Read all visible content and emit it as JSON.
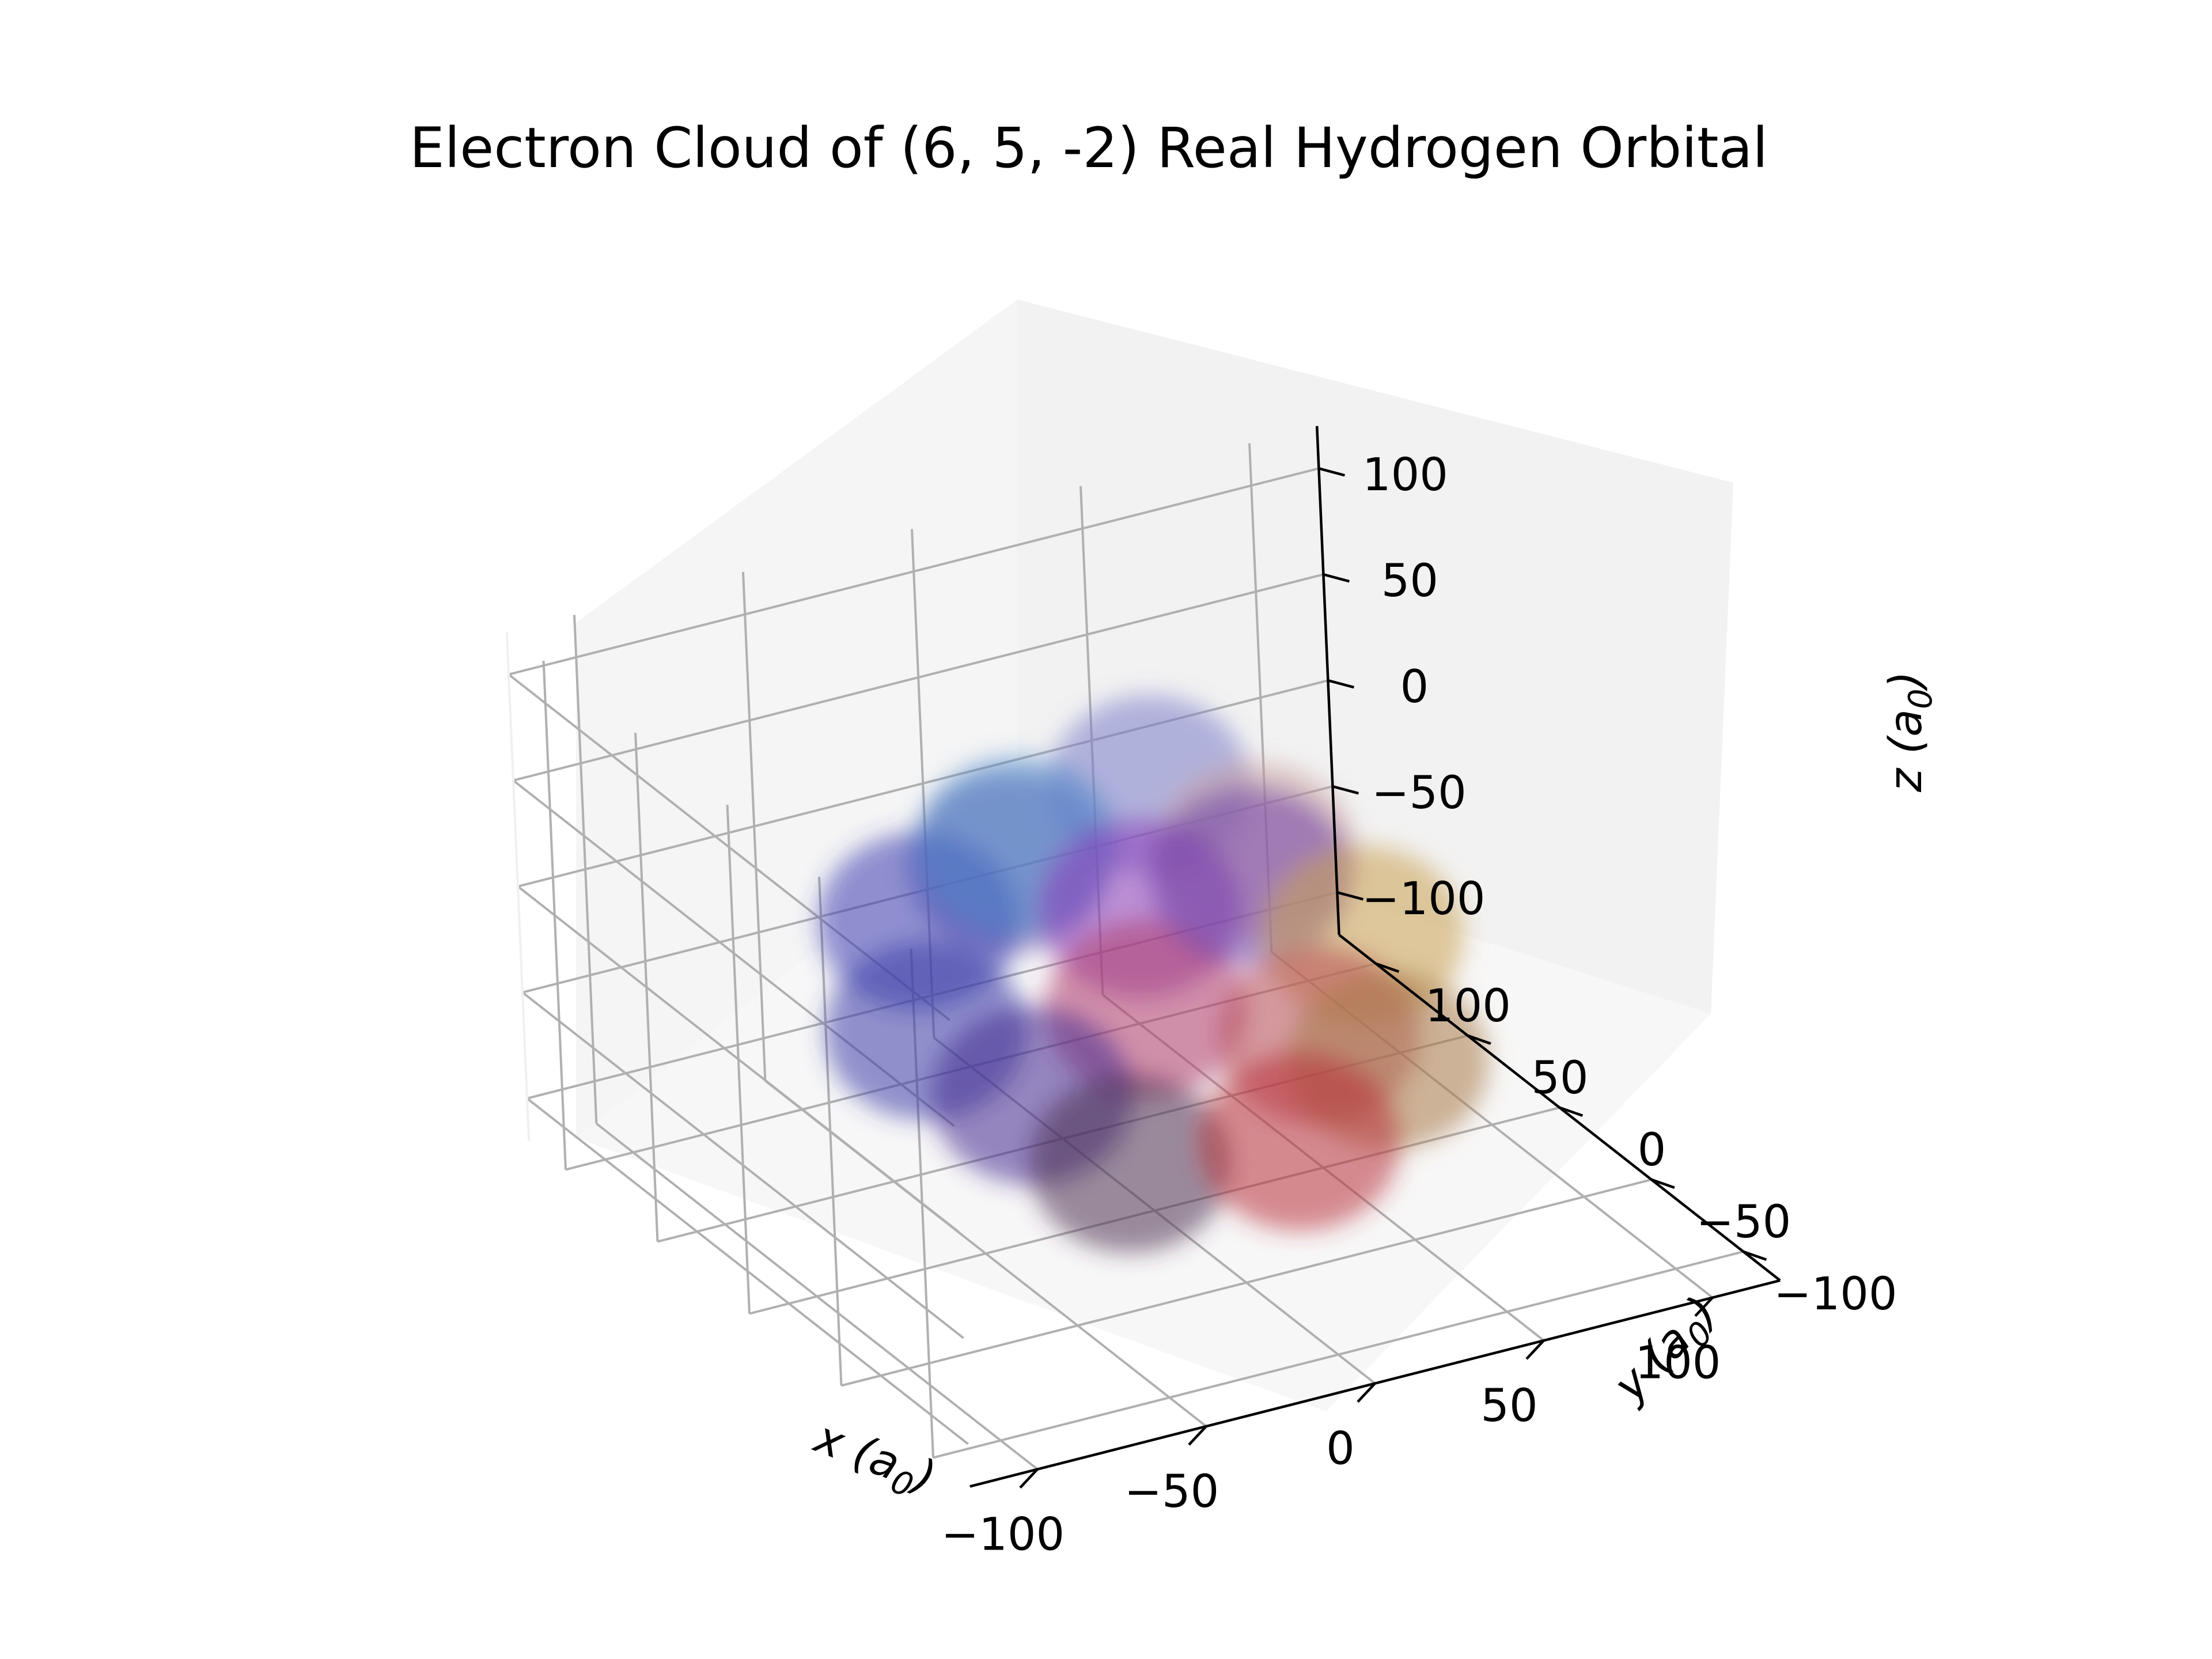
{
  "chart_data": {
    "type": "scatter",
    "title": "Electron Cloud of (6, 5, -2) Real Hydrogen Orbital",
    "xlabel": "x (a0)",
    "ylabel": "y (a0)",
    "zlabel": "z (a0)",
    "xlabel_parts": {
      "base": "x (",
      "var": "a",
      "sub": "0",
      "close": ")"
    },
    "ylabel_parts": {
      "base": "y (",
      "var": "a",
      "sub": "0",
      "close": ")"
    },
    "zlabel_parts": {
      "base": "z (",
      "var": "a",
      "sub": "0",
      "close": ")"
    },
    "xlim": [
      -120,
      120
    ],
    "ylim": [
      -120,
      120
    ],
    "zlim": [
      -120,
      120
    ],
    "x_ticks": [
      -100,
      -50,
      0,
      50,
      100
    ],
    "y_ticks": [
      -100,
      -50,
      0,
      50,
      100
    ],
    "z_ticks": [
      -100,
      -50,
      0,
      50,
      100
    ],
    "x_tick_labels": [
      "−100",
      "−50",
      "0",
      "50",
      "100"
    ],
    "y_tick_labels": [
      "−100",
      "−50",
      "0",
      "50",
      "100"
    ],
    "z_tick_labels": [
      "−100",
      "−50",
      "0",
      "50",
      "100"
    ],
    "grid": true,
    "projection": "3d",
    "lobes": [
      {
        "x": -20,
        "y": 30,
        "z": 40,
        "color": "#4a86c8"
      },
      {
        "x": 30,
        "y": 50,
        "z": 35,
        "color": "#7a7cc8"
      },
      {
        "x": -55,
        "y": 20,
        "z": 25,
        "color": "#3a3ab0"
      },
      {
        "x": -70,
        "y": -10,
        "z": 0,
        "color": "#3a3aa8"
      },
      {
        "x": 10,
        "y": 20,
        "z": 5,
        "color": "#8a3ab8"
      },
      {
        "x": 55,
        "y": 40,
        "z": 0,
        "color": "#c8a0a0"
      },
      {
        "x": 70,
        "y": 10,
        "z": -25,
        "color": "#c8a050"
      },
      {
        "x": -50,
        "y": -30,
        "z": -25,
        "color": "#452a90"
      },
      {
        "x": 0,
        "y": 0,
        "z": -25,
        "color": "#b03a6a"
      },
      {
        "x": 40,
        "y": -20,
        "z": -40,
        "color": "#b84a58"
      },
      {
        "x": -30,
        "y": -45,
        "z": -55,
        "color": "#4a3050"
      },
      {
        "x": 20,
        "y": -45,
        "z": -65,
        "color": "#b8303a"
      },
      {
        "x": 60,
        "y": -20,
        "z": -60,
        "color": "#a87a48"
      },
      {
        "x": -10,
        "y": 55,
        "z": 10,
        "color": "#6a5ab0"
      },
      {
        "x": 35,
        "y": 5,
        "z": 20,
        "color": "#7040a8"
      }
    ]
  }
}
